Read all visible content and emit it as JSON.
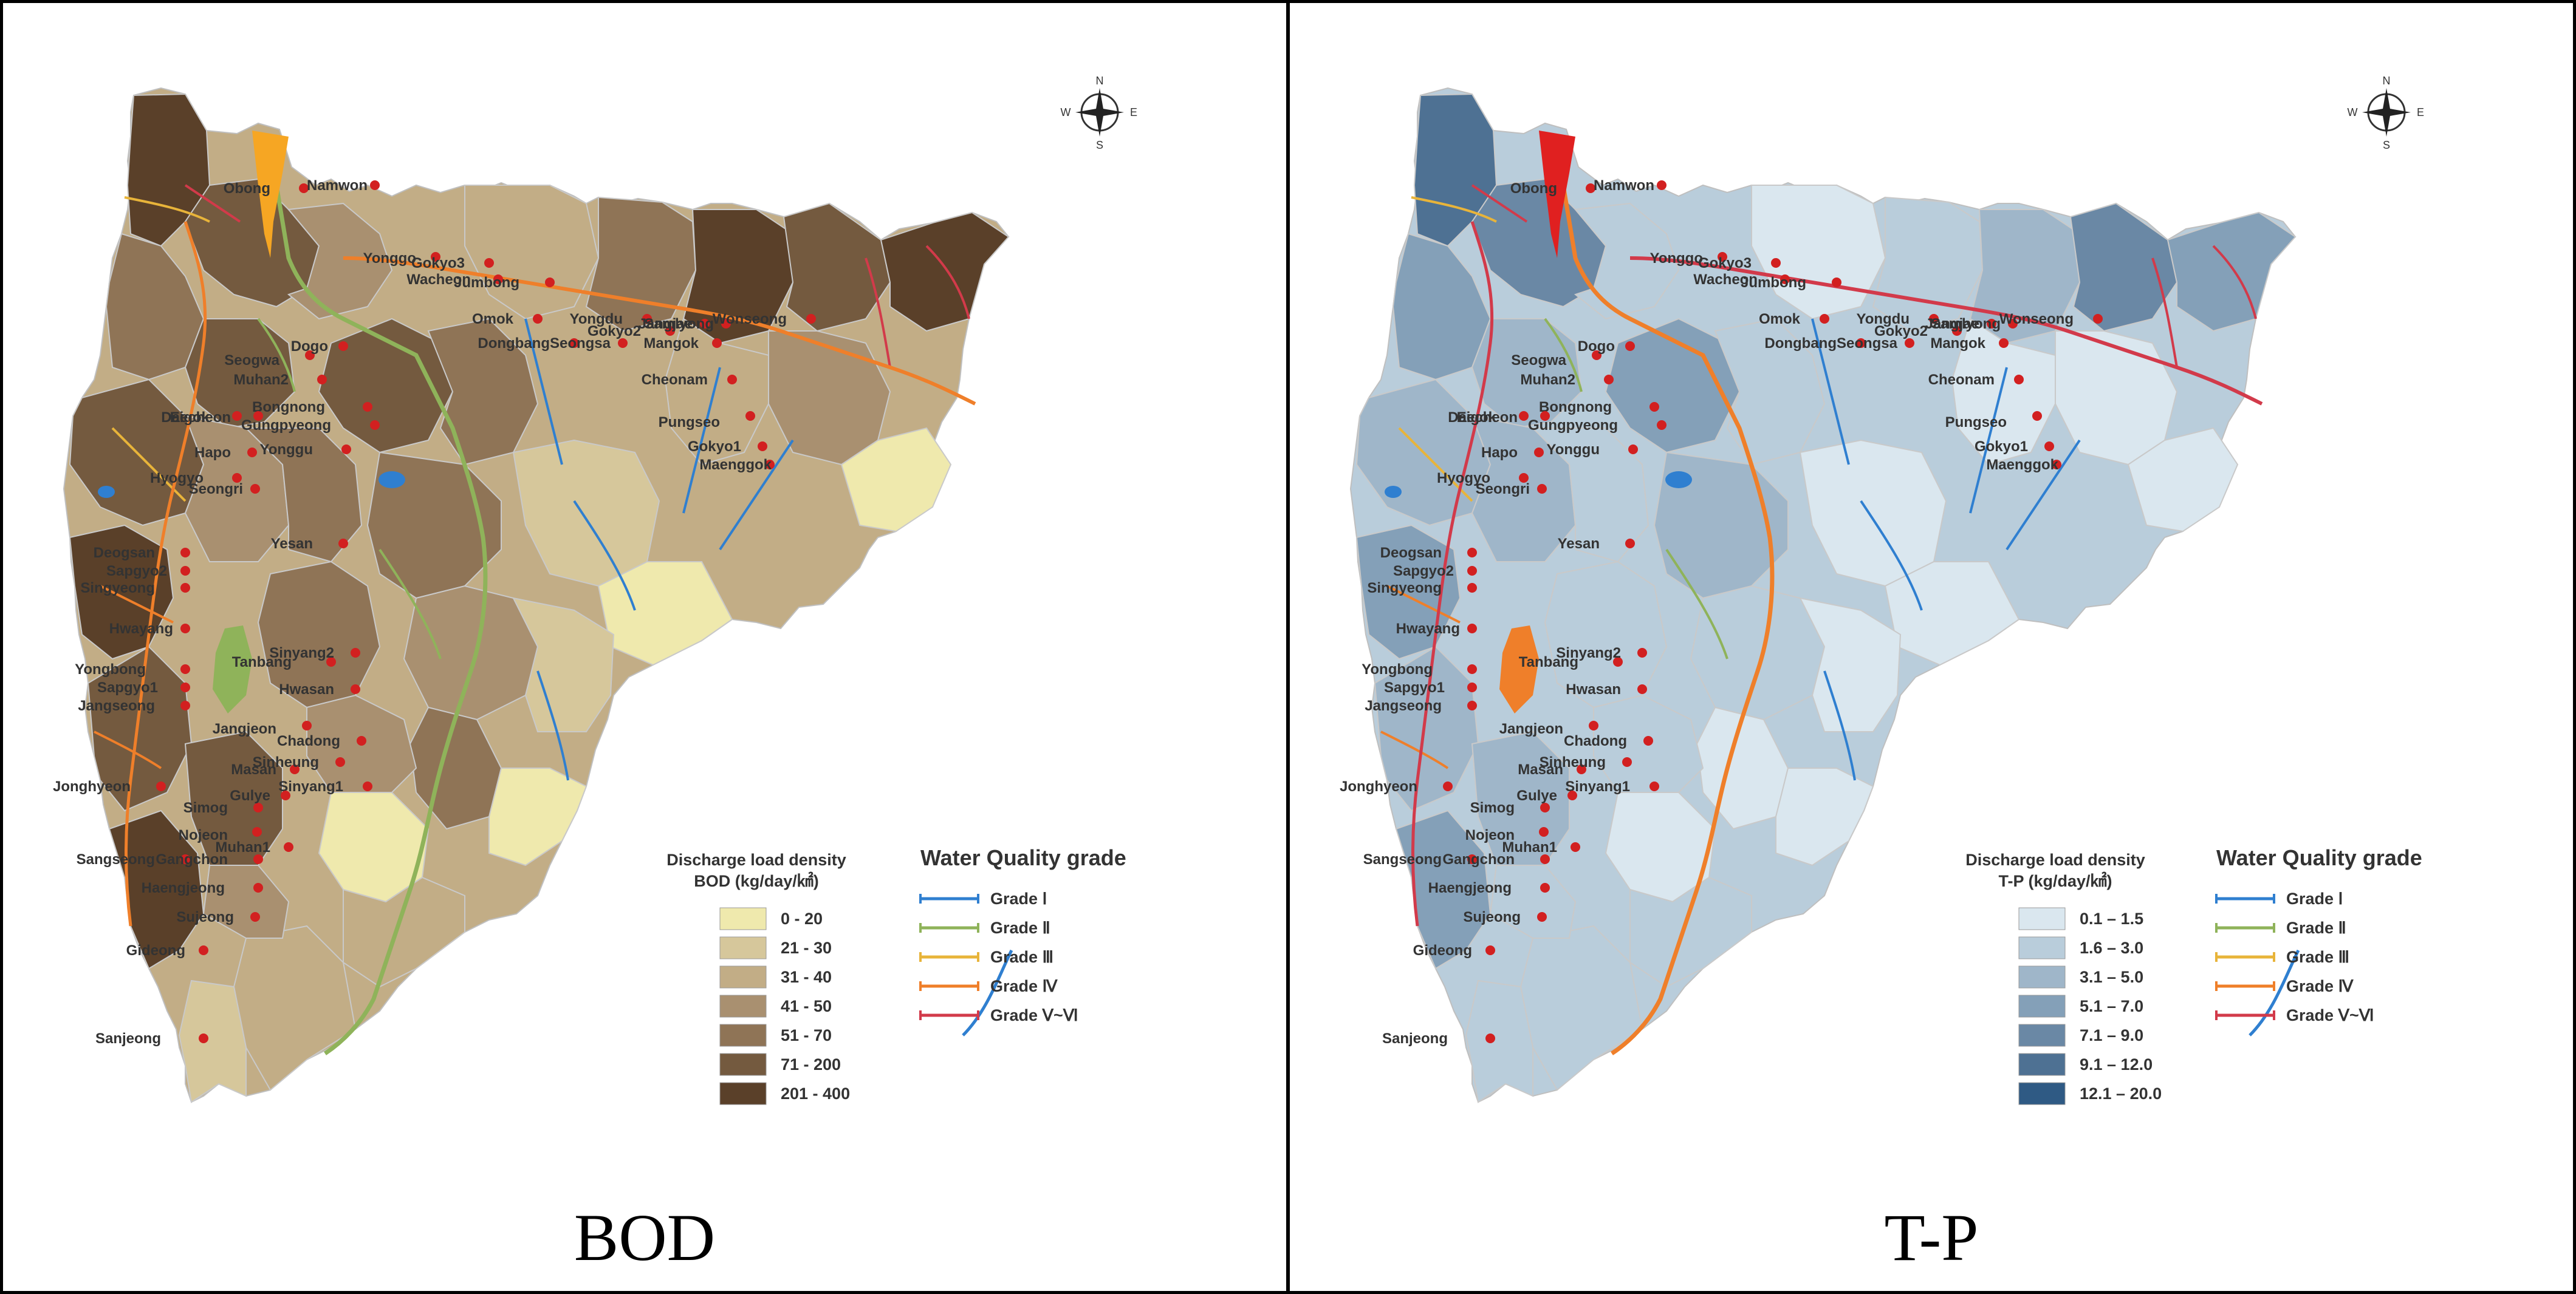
{
  "panels": [
    {
      "caption": "BOD",
      "density_legend": {
        "title_line1": "Discharge load density",
        "title_line2": "BOD (kg/day/㎢)",
        "classes": [
          {
            "label": "0 - 20",
            "color": "#efe9ad"
          },
          {
            "label": "21 - 30",
            "color": "#d6c79b"
          },
          {
            "label": "31 - 40",
            "color": "#c2ad86"
          },
          {
            "label": "41 - 50",
            "color": "#a99070"
          },
          {
            "label": "51 - 70",
            "color": "#8f7456"
          },
          {
            "label": "71 - 200",
            "color": "#745a3f"
          },
          {
            "label": "201 - 400",
            "color": "#5a4029"
          }
        ]
      },
      "main_river_color": "#f6a623"
    },
    {
      "caption": "T-P",
      "density_legend": {
        "title_line1": "Discharge load density",
        "title_line2": "T-P (kg/day/㎢)",
        "classes": [
          {
            "label": "0.1 – 1.5",
            "color": "#dae7ef"
          },
          {
            "label": "1.6 – 3.0",
            "color": "#b9cddb"
          },
          {
            "label": "3.1 – 5.0",
            "color": "#9fb6c9"
          },
          {
            "label": "5.1 – 7.0",
            "color": "#84a0b8"
          },
          {
            "label": "7.1 – 9.0",
            "color": "#6a88a5"
          },
          {
            "label": "9.1 – 12.0",
            "color": "#4e7193"
          },
          {
            "label": "12.1 – 20.0",
            "color": "#2f5a84"
          }
        ]
      },
      "main_river_color": "#e02020"
    }
  ],
  "grade_legend": {
    "title": "Water Quality grade",
    "grades": [
      {
        "label": "Grade Ⅰ",
        "color": "#2f7fd0"
      },
      {
        "label": "Grade Ⅱ",
        "color": "#8fb35a"
      },
      {
        "label": "Grade Ⅲ",
        "color": "#e8b43a"
      },
      {
        "label": "Grade Ⅳ",
        "color": "#ef7f2a"
      },
      {
        "label": "Grade Ⅴ~Ⅵ",
        "color": "#d23a4a"
      }
    ]
  },
  "compass": {
    "n": "N",
    "s": "S",
    "e": "E",
    "w": "W"
  },
  "stations": [
    {
      "name": "Obong"
    },
    {
      "name": "Namwon"
    },
    {
      "name": "Yonggo"
    },
    {
      "name": "Gokyo3"
    },
    {
      "name": "Wacheon"
    },
    {
      "name": "Jumbong"
    },
    {
      "name": "Omok"
    },
    {
      "name": "Yongdu"
    },
    {
      "name": "Gokyo2"
    },
    {
      "name": "Jangjae"
    },
    {
      "name": "Samlyong"
    },
    {
      "name": "Wonseong"
    },
    {
      "name": "Cheonam"
    },
    {
      "name": "Mangok"
    },
    {
      "name": "Pungseo"
    },
    {
      "name": "Gokyo1"
    },
    {
      "name": "Maenggok"
    },
    {
      "name": "Seogwa"
    },
    {
      "name": "Dogo"
    },
    {
      "name": "Muhan2"
    },
    {
      "name": "Bongnong"
    },
    {
      "name": "Gungpyeong"
    },
    {
      "name": "Yonggu"
    },
    {
      "name": "Eigok"
    },
    {
      "name": "Daecheon"
    },
    {
      "name": "Hapo"
    },
    {
      "name": "Hyogyo"
    },
    {
      "name": "Seongri"
    },
    {
      "name": "Yesan"
    },
    {
      "name": "Deogsan"
    },
    {
      "name": "Sapgyo2"
    },
    {
      "name": "Singyeong"
    },
    {
      "name": "Hwayang"
    },
    {
      "name": "Yongbong"
    },
    {
      "name": "Sapgyo1"
    },
    {
      "name": "Jangseong"
    },
    {
      "name": "Tanbang"
    },
    {
      "name": "Sinyang2"
    },
    {
      "name": "Hwasan"
    },
    {
      "name": "Jangjeon"
    },
    {
      "name": "Chadong"
    },
    {
      "name": "Masan"
    },
    {
      "name": "Sinheung"
    },
    {
      "name": "Sinyang1"
    },
    {
      "name": "Jonghyeon"
    },
    {
      "name": "Simog"
    },
    {
      "name": "Gulye"
    },
    {
      "name": "Nojeon"
    },
    {
      "name": "Muhan1"
    },
    {
      "name": "Sangseong"
    },
    {
      "name": "Gangchon"
    },
    {
      "name": "Haengjeong"
    },
    {
      "name": "Sujeong"
    },
    {
      "name": "Gideong"
    },
    {
      "name": "Sanjeong"
    },
    {
      "name": "Dongbang"
    },
    {
      "name": "Seongsa"
    }
  ]
}
